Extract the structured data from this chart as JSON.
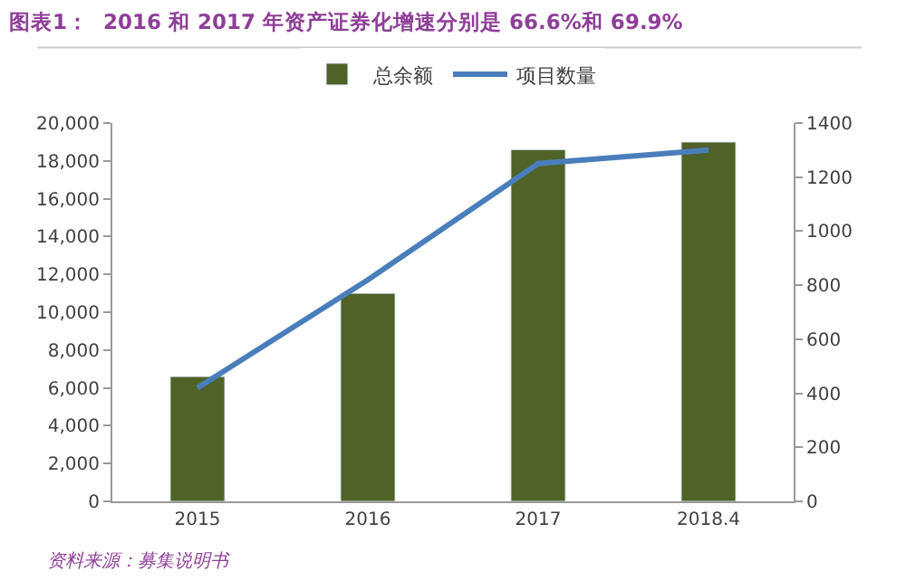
{
  "chart_data": {
    "type": "bar",
    "title": "图表1：  2016 和 2017 年资产证券化增速分别是 66.6%和 69.9%",
    "categories": [
      "2015",
      "2016",
      "2017",
      "2018.4"
    ],
    "series": [
      {
        "name": "总余额",
        "color": "#4f6228",
        "values": [
          6600,
          11000,
          18600,
          19000
        ]
      },
      {
        "name": "项目数量",
        "type": "line",
        "axis": "y2",
        "color": "#4a7ebb",
        "values": [
          420,
          820,
          1250,
          1300
        ],
        "marker": "none",
        "line_style": "solid"
      }
    ],
    "ylim": [
      0,
      20000
    ],
    "yticks": [
      {
        "value": 0,
        "label": "0"
      },
      {
        "value": 2000,
        "label": "2,000"
      },
      {
        "value": 4000,
        "label": "4,000"
      },
      {
        "value": 6000,
        "label": "6,000"
      },
      {
        "value": 8000,
        "label": "8,000"
      },
      {
        "value": 10000,
        "label": "10,000"
      },
      {
        "value": 12000,
        "label": "12,000"
      },
      {
        "value": 14000,
        "label": "14,000"
      },
      {
        "value": 16000,
        "label": "16,000"
      },
      {
        "value": 18000,
        "label": "18,000"
      },
      {
        "value": 20000,
        "label": "20,000"
      }
    ],
    "y2lim": [
      0,
      1400
    ],
    "y2ticks": [
      0,
      200,
      400,
      600,
      800,
      1000,
      1200,
      1400
    ],
    "legend": "top",
    "annotations": [
      "资料来源：募集说明书"
    ]
  }
}
